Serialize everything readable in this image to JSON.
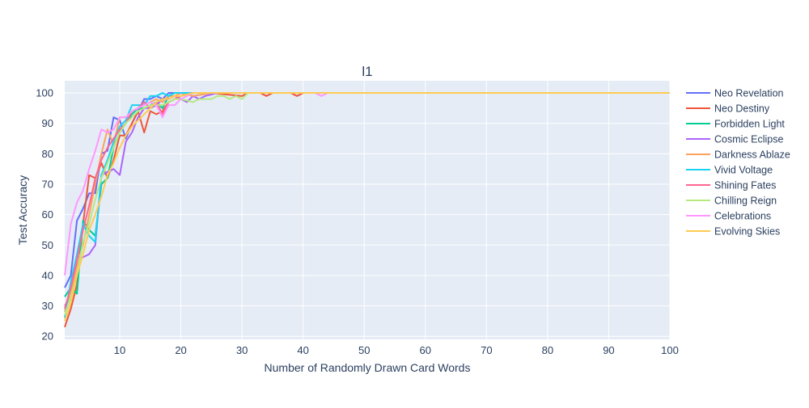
{
  "chart_data": {
    "type": "line",
    "title": "l1",
    "xlabel": "Number of Randomly Drawn Card Words",
    "ylabel": "Test Accuracy",
    "xlim": [
      1,
      100
    ],
    "ylim": [
      19,
      104
    ],
    "xticks": [
      10,
      20,
      30,
      40,
      50,
      60,
      70,
      80,
      90,
      100
    ],
    "yticks": [
      20,
      30,
      40,
      50,
      60,
      70,
      80,
      90,
      100
    ],
    "grid": true,
    "legend_position": "right",
    "series": [
      {
        "name": "Neo Revelation",
        "color": "#636efa",
        "points": [
          [
            1,
            36
          ],
          [
            2,
            40
          ],
          [
            3,
            58
          ],
          [
            4,
            62
          ],
          [
            5,
            67
          ],
          [
            6,
            67
          ],
          [
            7,
            80
          ],
          [
            8,
            81
          ],
          [
            9,
            92
          ],
          [
            10,
            91
          ],
          [
            11,
            85
          ],
          [
            12,
            90
          ],
          [
            13,
            94
          ],
          [
            14,
            98
          ],
          [
            15,
            98
          ],
          [
            16,
            99
          ],
          [
            17,
            98
          ],
          [
            18,
            100
          ],
          [
            19,
            100
          ],
          [
            20,
            100
          ],
          [
            22,
            99
          ],
          [
            25,
            100
          ],
          [
            28,
            100
          ],
          [
            30,
            100
          ],
          [
            100,
            100
          ]
        ]
      },
      {
        "name": "Neo Destiny",
        "color": "#ef553b",
        "points": [
          [
            1,
            23
          ],
          [
            2,
            29
          ],
          [
            3,
            37
          ],
          [
            4,
            57
          ],
          [
            5,
            73
          ],
          [
            6,
            72
          ],
          [
            7,
            77
          ],
          [
            8,
            72
          ],
          [
            9,
            78
          ],
          [
            10,
            86
          ],
          [
            11,
            86
          ],
          [
            12,
            90
          ],
          [
            13,
            94
          ],
          [
            14,
            87
          ],
          [
            15,
            94
          ],
          [
            16,
            93
          ],
          [
            17,
            94
          ],
          [
            18,
            97
          ],
          [
            19,
            98
          ],
          [
            20,
            99
          ],
          [
            22,
            100
          ],
          [
            25,
            100
          ],
          [
            30,
            99
          ],
          [
            31,
            100
          ],
          [
            33,
            100
          ],
          [
            34,
            99
          ],
          [
            35,
            100
          ],
          [
            38,
            100
          ],
          [
            39,
            99
          ],
          [
            40,
            100
          ],
          [
            100,
            100
          ]
        ]
      },
      {
        "name": "Forbidden Light",
        "color": "#00cc96",
        "points": [
          [
            1,
            33
          ],
          [
            2,
            36
          ],
          [
            3,
            34
          ],
          [
            4,
            58
          ],
          [
            5,
            55
          ],
          [
            6,
            53
          ],
          [
            7,
            70
          ],
          [
            8,
            72
          ],
          [
            9,
            82
          ],
          [
            10,
            87
          ],
          [
            11,
            90
          ],
          [
            12,
            93
          ],
          [
            13,
            95
          ],
          [
            14,
            95
          ],
          [
            15,
            96
          ],
          [
            16,
            97
          ],
          [
            17,
            95
          ],
          [
            18,
            99
          ],
          [
            19,
            100
          ],
          [
            20,
            100
          ],
          [
            23,
            100
          ],
          [
            100,
            100
          ]
        ]
      },
      {
        "name": "Cosmic Eclipse",
        "color": "#ab63fa",
        "points": [
          [
            1,
            30
          ],
          [
            2,
            33
          ],
          [
            3,
            46
          ],
          [
            4,
            46
          ],
          [
            5,
            47
          ],
          [
            6,
            50
          ],
          [
            7,
            73
          ],
          [
            8,
            74
          ],
          [
            9,
            75
          ],
          [
            10,
            73
          ],
          [
            11,
            84
          ],
          [
            12,
            87
          ],
          [
            13,
            92
          ],
          [
            14,
            95
          ],
          [
            15,
            95
          ],
          [
            16,
            96
          ],
          [
            17,
            98
          ],
          [
            18,
            98
          ],
          [
            19,
            99
          ],
          [
            20,
            98
          ],
          [
            21,
            97
          ],
          [
            22,
            99
          ],
          [
            23,
            98
          ],
          [
            24,
            99
          ],
          [
            26,
            100
          ],
          [
            100,
            100
          ]
        ]
      },
      {
        "name": "Darkness Ablaze",
        "color": "#ffa15a",
        "points": [
          [
            1,
            28
          ],
          [
            2,
            34
          ],
          [
            3,
            43
          ],
          [
            4,
            50
          ],
          [
            5,
            60
          ],
          [
            6,
            70
          ],
          [
            7,
            80
          ],
          [
            8,
            88
          ],
          [
            9,
            83
          ],
          [
            10,
            92
          ],
          [
            11,
            92
          ],
          [
            12,
            94
          ],
          [
            13,
            95
          ],
          [
            14,
            96
          ],
          [
            15,
            97
          ],
          [
            16,
            98
          ],
          [
            17,
            97
          ],
          [
            18,
            99
          ],
          [
            19,
            99
          ],
          [
            20,
            100
          ],
          [
            22,
            99
          ],
          [
            25,
            100
          ],
          [
            100,
            100
          ]
        ]
      },
      {
        "name": "Vivid Voltage",
        "color": "#19d3f3",
        "points": [
          [
            1,
            26
          ],
          [
            2,
            38
          ],
          [
            3,
            47
          ],
          [
            4,
            57
          ],
          [
            5,
            53
          ],
          [
            6,
            51
          ],
          [
            7,
            73
          ],
          [
            8,
            78
          ],
          [
            9,
            84
          ],
          [
            10,
            89
          ],
          [
            11,
            91
          ],
          [
            12,
            96
          ],
          [
            13,
            96
          ],
          [
            14,
            96
          ],
          [
            15,
            99
          ],
          [
            16,
            99
          ],
          [
            17,
            100
          ],
          [
            18,
            99
          ],
          [
            19,
            100
          ],
          [
            20,
            100
          ],
          [
            100,
            100
          ]
        ]
      },
      {
        "name": "Shining Fates",
        "color": "#ff6692",
        "points": [
          [
            1,
            29
          ],
          [
            2,
            36
          ],
          [
            3,
            45
          ],
          [
            4,
            55
          ],
          [
            5,
            63
          ],
          [
            6,
            72
          ],
          [
            7,
            78
          ],
          [
            8,
            82
          ],
          [
            9,
            85
          ],
          [
            10,
            88
          ],
          [
            11,
            90
          ],
          [
            12,
            94
          ],
          [
            13,
            95
          ],
          [
            14,
            97
          ],
          [
            15,
            95
          ],
          [
            16,
            97
          ],
          [
            17,
            93
          ],
          [
            18,
            97
          ],
          [
            19,
            98
          ],
          [
            20,
            99
          ],
          [
            22,
            100
          ],
          [
            24,
            100
          ],
          [
            26,
            100
          ],
          [
            100,
            100
          ]
        ]
      },
      {
        "name": "Chilling Reign",
        "color": "#b6e880",
        "points": [
          [
            1,
            27
          ],
          [
            2,
            33
          ],
          [
            3,
            40
          ],
          [
            4,
            51
          ],
          [
            5,
            57
          ],
          [
            6,
            65
          ],
          [
            7,
            72
          ],
          [
            8,
            77
          ],
          [
            9,
            82
          ],
          [
            10,
            87
          ],
          [
            11,
            90
          ],
          [
            12,
            92
          ],
          [
            13,
            94
          ],
          [
            14,
            95
          ],
          [
            15,
            96
          ],
          [
            16,
            96
          ],
          [
            17,
            96
          ],
          [
            18,
            97
          ],
          [
            19,
            98
          ],
          [
            20,
            98
          ],
          [
            22,
            97
          ],
          [
            23,
            98
          ],
          [
            25,
            98
          ],
          [
            26,
            99
          ],
          [
            27,
            99
          ],
          [
            28,
            98
          ],
          [
            29,
            99
          ],
          [
            30,
            98
          ],
          [
            31,
            100
          ],
          [
            100,
            100
          ]
        ]
      },
      {
        "name": "Celebrations",
        "color": "#ff97ff",
        "points": [
          [
            1,
            40
          ],
          [
            2,
            57
          ],
          [
            3,
            64
          ],
          [
            4,
            68
          ],
          [
            5,
            75
          ],
          [
            6,
            81
          ],
          [
            7,
            88
          ],
          [
            8,
            87
          ],
          [
            9,
            88
          ],
          [
            10,
            92
          ],
          [
            11,
            92
          ],
          [
            12,
            94
          ],
          [
            13,
            95
          ],
          [
            14,
            96
          ],
          [
            15,
            97
          ],
          [
            16,
            96
          ],
          [
            17,
            92
          ],
          [
            18,
            96
          ],
          [
            19,
            96
          ],
          [
            20,
            98
          ],
          [
            22,
            100
          ],
          [
            25,
            100
          ],
          [
            30,
            100
          ],
          [
            42,
            100
          ],
          [
            43,
            99
          ],
          [
            44,
            100
          ],
          [
            100,
            100
          ]
        ]
      },
      {
        "name": "Evolving Skies",
        "color": "#fecb52",
        "points": [
          [
            1,
            25
          ],
          [
            2,
            31
          ],
          [
            3,
            40
          ],
          [
            4,
            47
          ],
          [
            5,
            55
          ],
          [
            6,
            60
          ],
          [
            7,
            66
          ],
          [
            8,
            73
          ],
          [
            9,
            77
          ],
          [
            10,
            82
          ],
          [
            11,
            86
          ],
          [
            12,
            89
          ],
          [
            13,
            91
          ],
          [
            14,
            93
          ],
          [
            15,
            95
          ],
          [
            16,
            97
          ],
          [
            17,
            98
          ],
          [
            18,
            98
          ],
          [
            19,
            99
          ],
          [
            20,
            99
          ],
          [
            22,
            100
          ],
          [
            100,
            100
          ]
        ]
      }
    ]
  }
}
